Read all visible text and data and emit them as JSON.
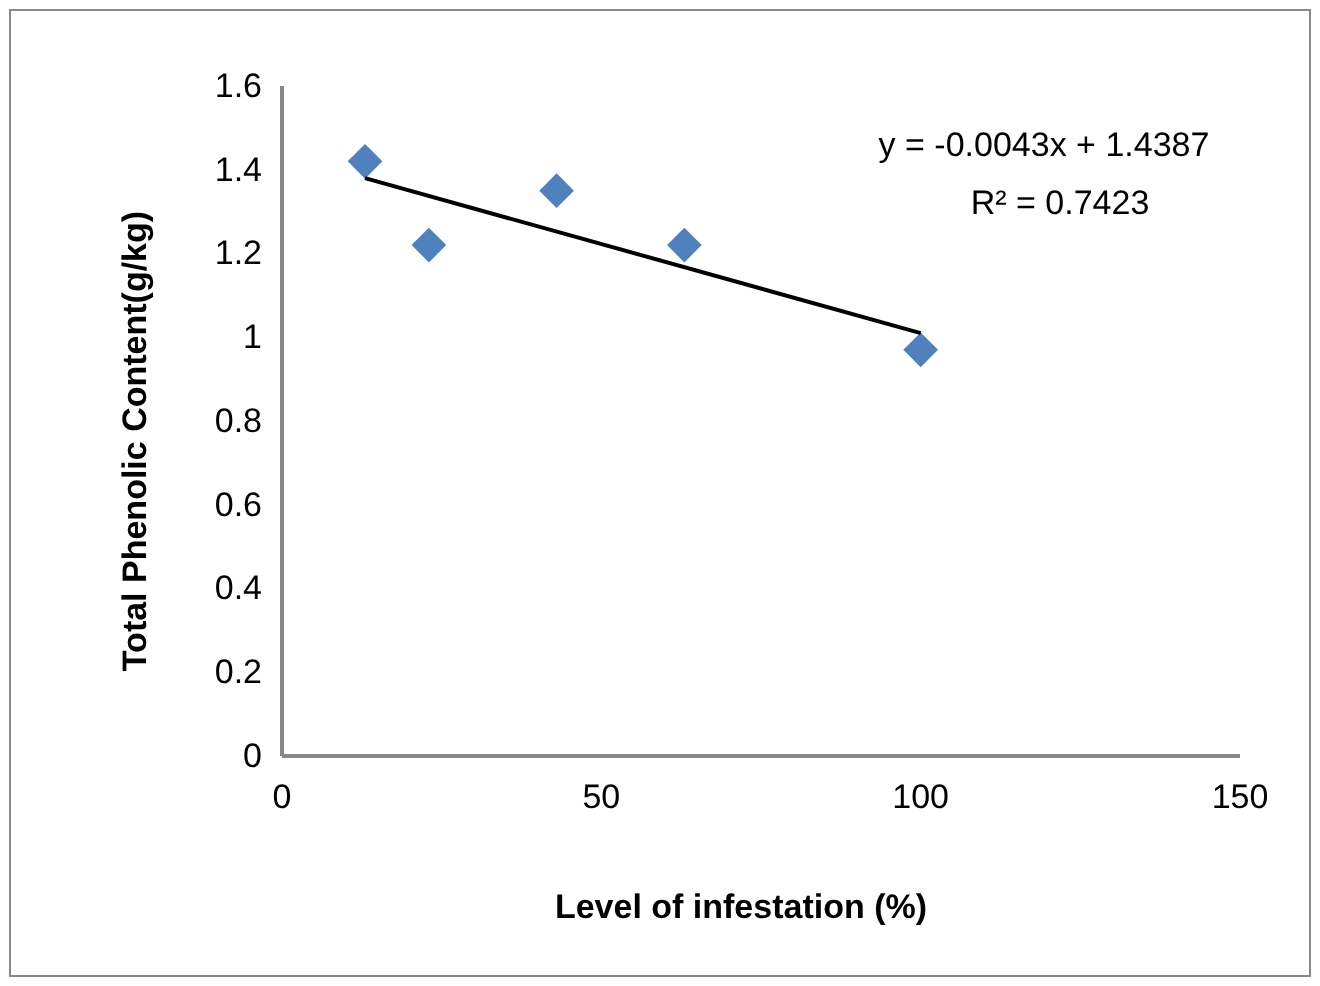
{
  "chart_data": {
    "type": "scatter",
    "xlabel": "Level of infestation (%)",
    "ylabel": "Total Phenolic Content(g/kg)",
    "xlim": [
      0,
      150
    ],
    "xticks": [
      0,
      50,
      100,
      150
    ],
    "ylim": [
      0,
      1.6
    ],
    "yticks": [
      0,
      0.2,
      0.4,
      0.6,
      0.8,
      1,
      1.2,
      1.4,
      1.6
    ],
    "grid": false,
    "marker": "diamond",
    "annotations": [
      "y = -0.0043x + 1.4387",
      "R² = 0.7423"
    ],
    "series": [
      {
        "color": "#4f81bd",
        "x": [
          13,
          23,
          43,
          63,
          100
        ],
        "values": [
          1.42,
          1.22,
          1.35,
          1.22,
          0.97
        ]
      },
      {
        "type": "line",
        "color": "#000000",
        "x": [
          13,
          100
        ],
        "values": [
          1.38,
          1.01
        ],
        "marker": "none"
      }
    ]
  }
}
